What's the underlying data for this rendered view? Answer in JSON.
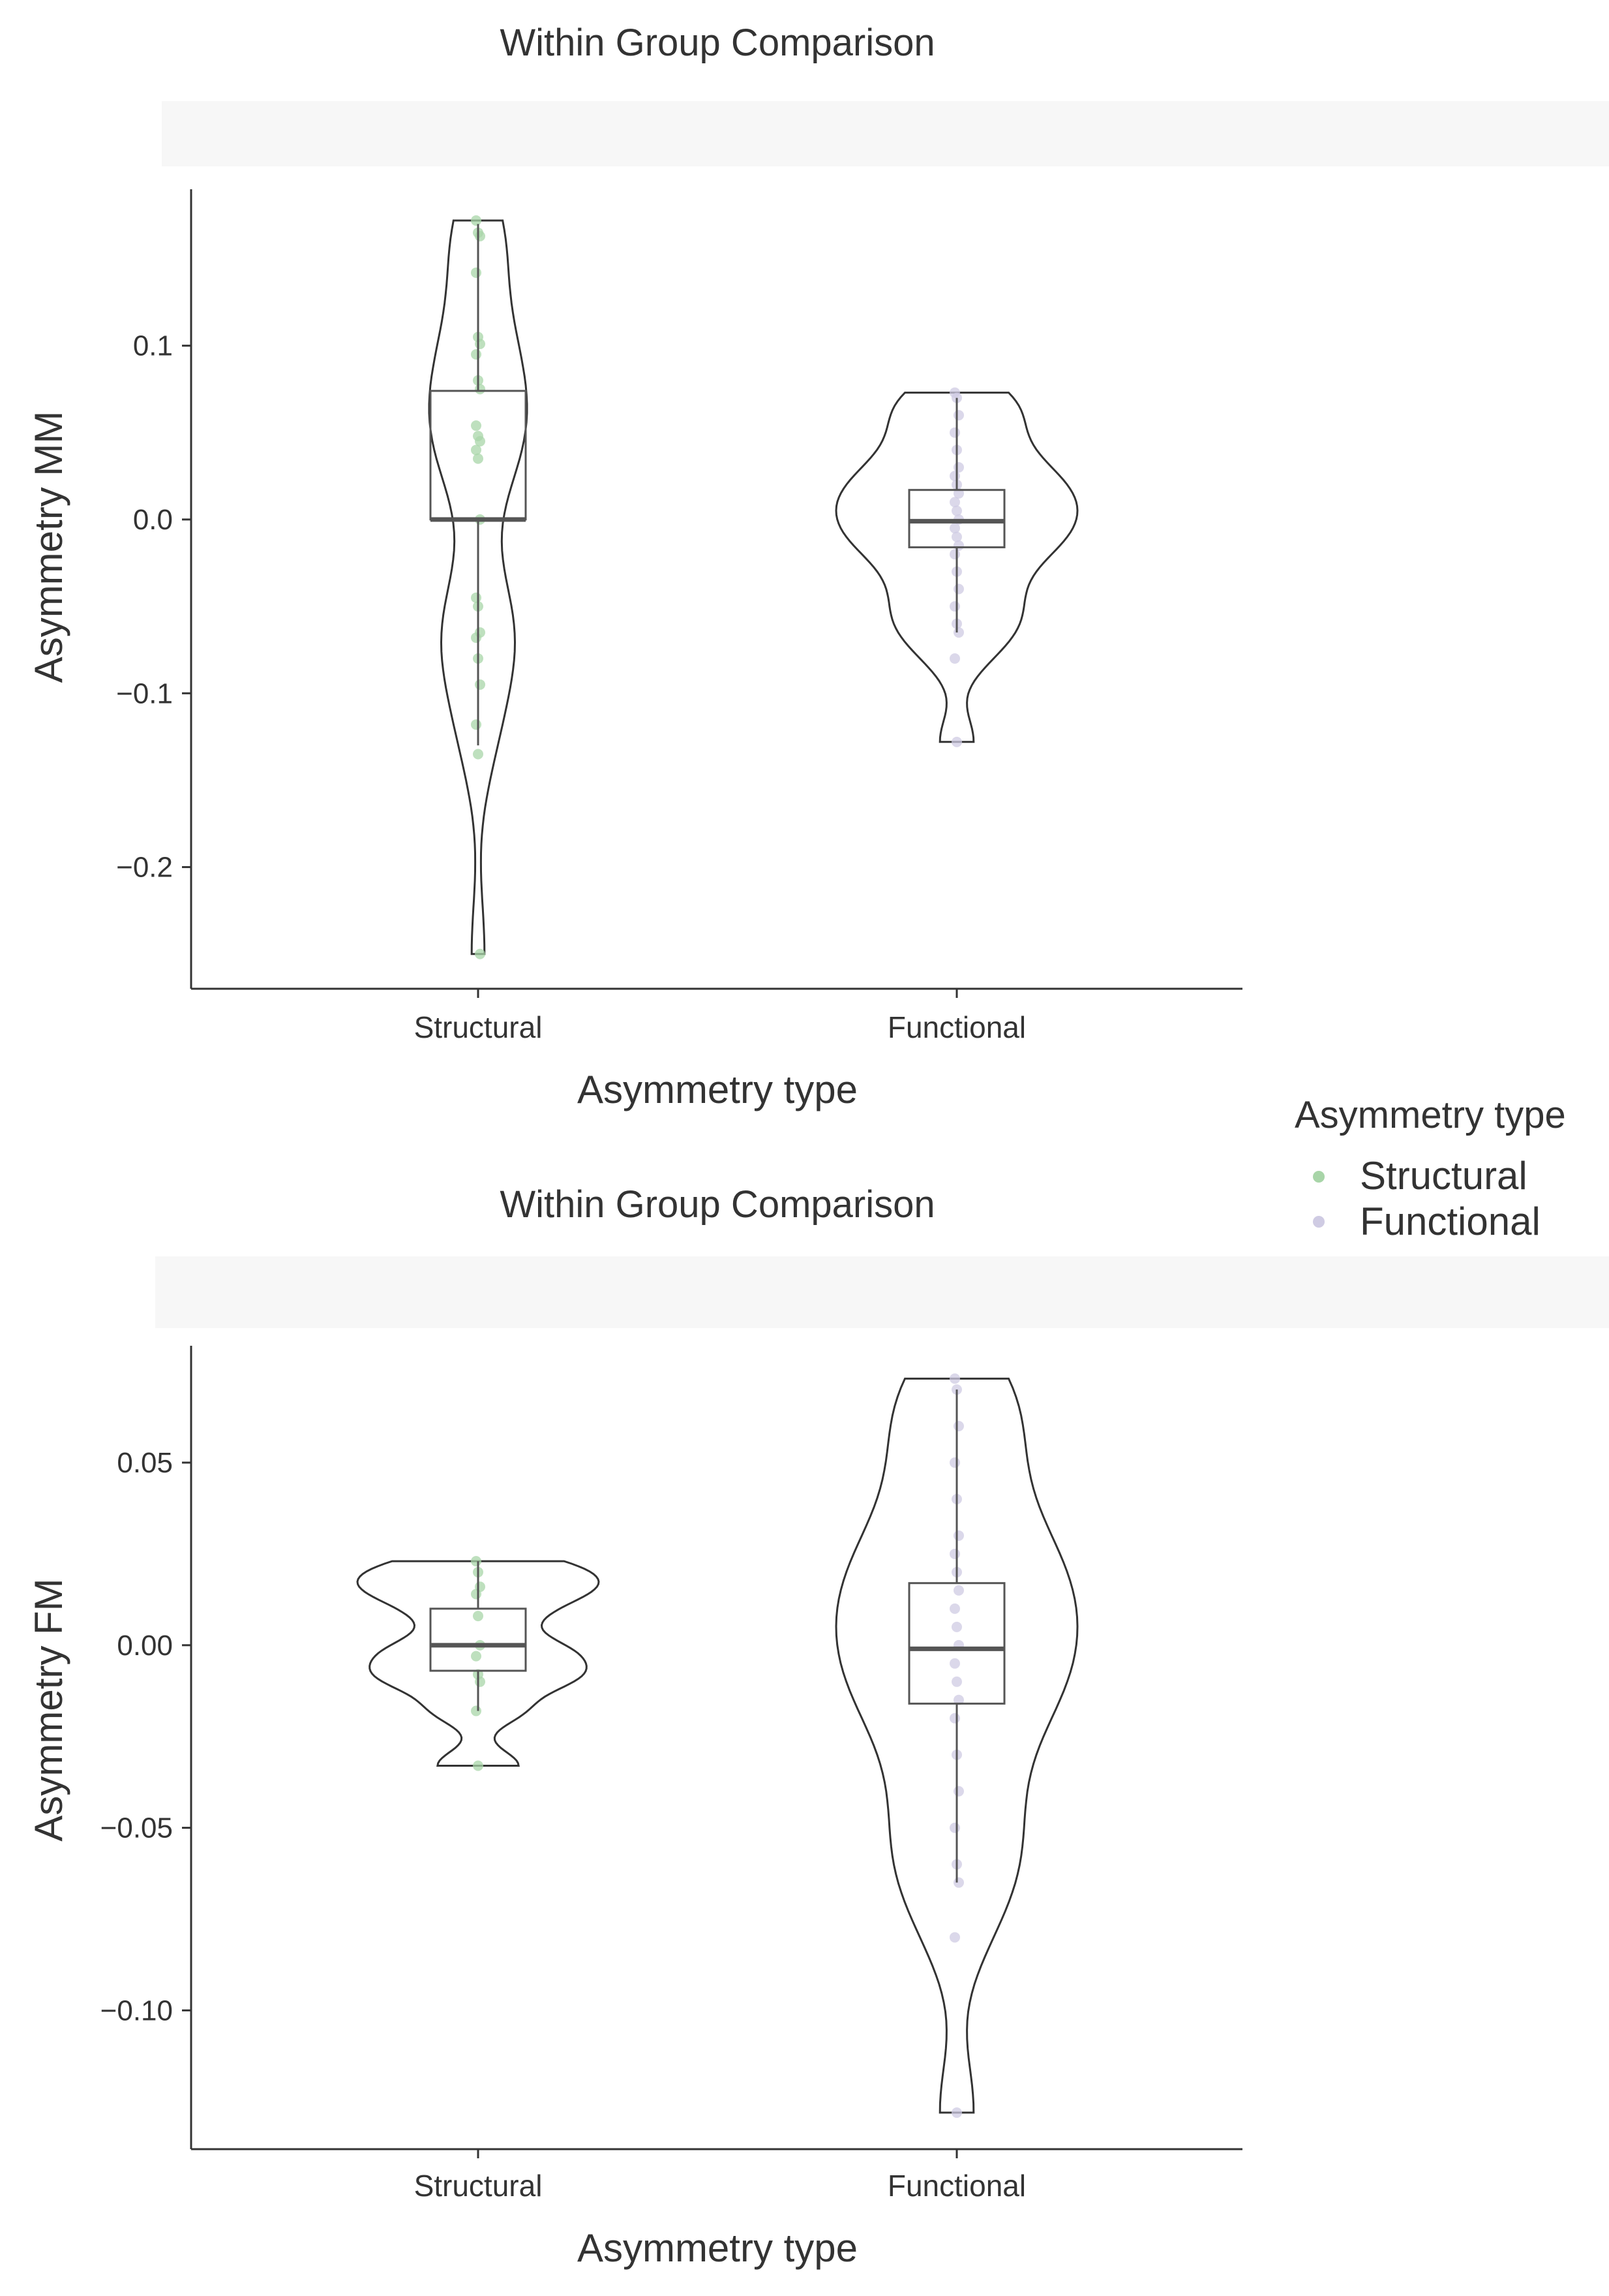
{
  "legend": {
    "title": "Asymmetry type",
    "items": [
      {
        "label": "Structural",
        "color": "#a8d5a8"
      },
      {
        "label": "Functional",
        "color": "#cfcbe3"
      }
    ]
  },
  "chart_data": [
    {
      "type": "violin",
      "title": "Within Group Comparison",
      "xlabel": "Asymmetry type",
      "ylabel": "Asymmetry MM",
      "categories": [
        "Structural",
        "Functional"
      ],
      "ylim": [
        -0.27,
        0.19
      ],
      "yticks": [
        0.1,
        0.0,
        -0.1,
        -0.2
      ],
      "ytick_labels": [
        "0.1",
        "0.0",
        "−0.1",
        "−0.2"
      ],
      "series": [
        {
          "category": "Structural",
          "color": "#a8d5a8",
          "box": {
            "q1": 0.0,
            "median": 0.0,
            "q3": 0.074,
            "whisker_low": -0.13,
            "whisker_high": 0.17
          },
          "range": [
            -0.25,
            0.172
          ],
          "points": [
            0.172,
            0.165,
            0.163,
            0.142,
            0.105,
            0.101,
            0.095,
            0.08,
            0.075,
            0.054,
            0.048,
            0.045,
            0.04,
            0.035,
            0.0,
            -0.045,
            -0.05,
            -0.065,
            -0.068,
            -0.08,
            -0.095,
            -0.118,
            -0.135,
            -0.25
          ]
        },
        {
          "category": "Functional",
          "color": "#cfcbe3",
          "box": {
            "q1": -0.016,
            "median": -0.001,
            "q3": 0.017,
            "whisker_low": -0.065,
            "whisker_high": 0.07
          },
          "range": [
            -0.128,
            0.073
          ],
          "points": [
            0.073,
            0.07,
            0.06,
            0.05,
            0.04,
            0.03,
            0.025,
            0.02,
            0.015,
            0.01,
            0.005,
            0.0,
            -0.005,
            -0.01,
            -0.015,
            -0.02,
            -0.03,
            -0.04,
            -0.05,
            -0.06,
            -0.065,
            -0.08,
            -0.128
          ]
        }
      ]
    },
    {
      "type": "violin",
      "title": "Within Group Comparison",
      "xlabel": "Asymmetry type",
      "ylabel": "Asymmetry FM",
      "categories": [
        "Structural",
        "Functional"
      ],
      "ylim": [
        -0.138,
        0.082
      ],
      "yticks": [
        0.05,
        0.0,
        -0.05,
        -0.1
      ],
      "ytick_labels": [
        "0.05",
        "0.00",
        "−0.05",
        "−0.10"
      ],
      "series": [
        {
          "category": "Structural",
          "color": "#a8d5a8",
          "box": {
            "q1": -0.007,
            "median": 0.0,
            "q3": 0.01,
            "whisker_low": -0.018,
            "whisker_high": 0.023
          },
          "range": [
            -0.033,
            0.023
          ],
          "points": [
            0.023,
            0.02,
            0.016,
            0.014,
            0.008,
            0.0,
            -0.003,
            -0.008,
            -0.01,
            -0.018,
            -0.033
          ]
        },
        {
          "category": "Functional",
          "color": "#cfcbe3",
          "box": {
            "q1": -0.016,
            "median": -0.001,
            "q3": 0.017,
            "whisker_low": -0.065,
            "whisker_high": 0.07
          },
          "range": [
            -0.128,
            0.073
          ],
          "points": [
            0.073,
            0.07,
            0.06,
            0.05,
            0.04,
            0.03,
            0.025,
            0.02,
            0.015,
            0.01,
            0.005,
            0.0,
            -0.005,
            -0.01,
            -0.015,
            -0.02,
            -0.03,
            -0.04,
            -0.05,
            -0.06,
            -0.065,
            -0.08,
            -0.128
          ]
        }
      ]
    }
  ]
}
